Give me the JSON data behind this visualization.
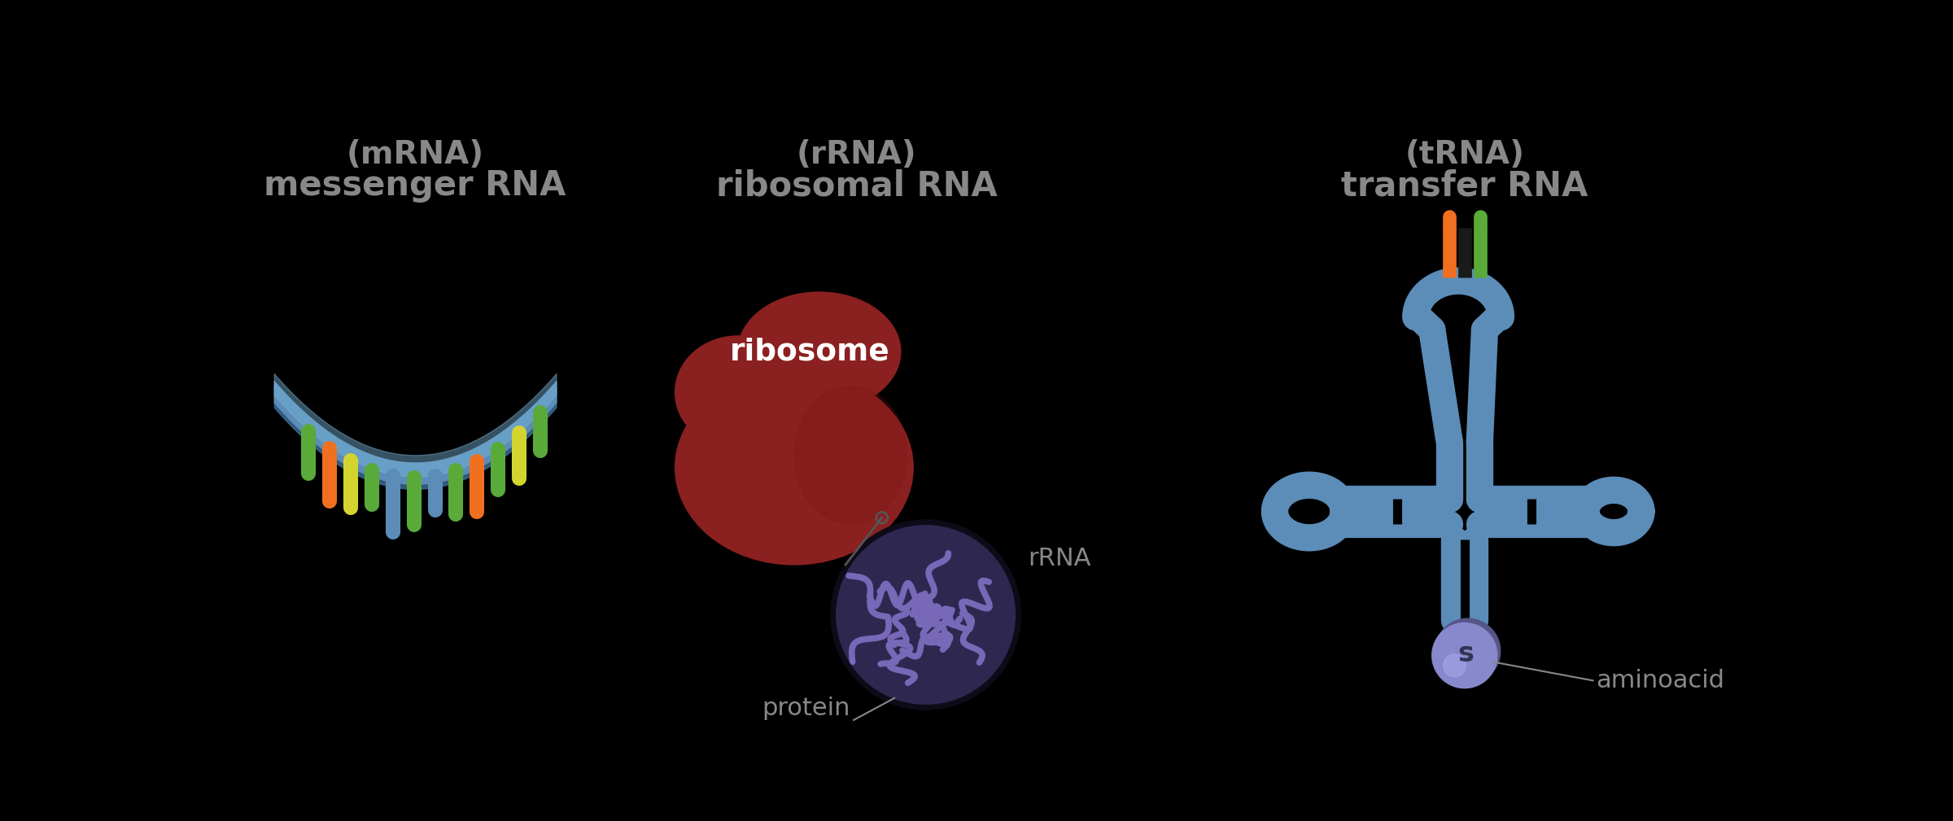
{
  "background_color": "#000000",
  "text_color": "#888888",
  "label_color": "#888888",
  "mrna_label": "messenger RNA",
  "mrna_sublabel": "(mRNA)",
  "rrna_label": "ribosomal RNA",
  "rrna_sublabel": "(rRNA)",
  "trna_label": "transfer RNA",
  "trna_sublabel": "(tRNA)",
  "ribosome_label": "ribosome",
  "protein_label": "protein",
  "rrna_label_small": "rRNA",
  "aminoacid_label": "aminoacid",
  "s_label": "s",
  "strand_color": "#5b8db8",
  "strand_dark": "#3a6a90",
  "strand_highlight": "#7ab5d8",
  "bar_colors": [
    "#5aaa3a",
    "#f07020",
    "#d4d430",
    "#5aaa3a",
    "#5b8db8",
    "#5aaa3a",
    "#5b8db8",
    "#5aaa3a",
    "#f07020",
    "#5aaa3a",
    "#d4d430",
    "#5aaa3a"
  ],
  "ribosome_color": "#8b2020",
  "ribosome_shade": "#7a1818",
  "circle_bg": "#2e2850",
  "circle_line": "#7868b8",
  "circle_dark": "#1a1530",
  "trna_color": "#5b8db8",
  "trna_dark": "#2a5070",
  "aminoacid_color": "#8888cc",
  "aminoacid_shadow": "#555588",
  "aminoacid_highlight": "#aaaaee",
  "orange_bar": "#f07020",
  "green_bar": "#5aaa3a",
  "dark_bar": "#222222",
  "font_size_main": 30,
  "font_size_sub": 28,
  "font_size_small": 22
}
